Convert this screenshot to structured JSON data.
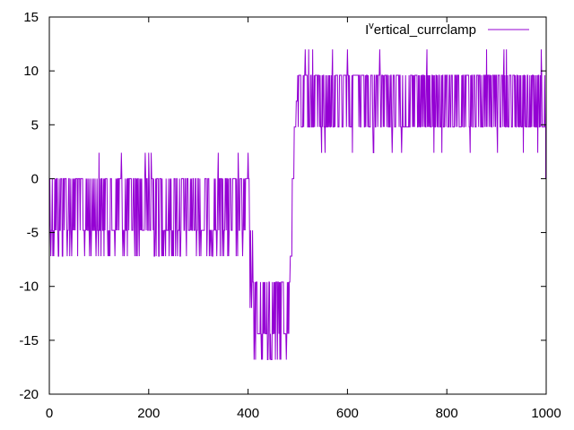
{
  "chart_data": {
    "type": "line",
    "title": "",
    "xlabel": "",
    "ylabel": "",
    "xlim": [
      0,
      1000
    ],
    "ylim": [
      -20,
      15
    ],
    "xticks": [
      0,
      200,
      400,
      600,
      800,
      1000
    ],
    "yticks": [
      -20,
      -15,
      -10,
      -5,
      0,
      5,
      10,
      15
    ],
    "grid": false,
    "legend_position": "top-right",
    "series": [
      {
        "name": "I^vertical_currclamp",
        "legend_label": "I",
        "legend_superscript": "v",
        "legend_rest": "ertical_currclamp",
        "color": "#9400d3",
        "segments": [
          {
            "x_start": 0,
            "x_end": 403,
            "levels": [
              0,
              -4.8,
              -7.2
            ],
            "spikes_up": [
              2.4
            ],
            "spike_x": [
              100,
              145,
              193,
              200,
              205,
              340,
              380,
              400
            ]
          },
          {
            "x_start": 403,
            "x_end": 410,
            "levels": [
              -4.8,
              -9.6,
              -12
            ]
          },
          {
            "x_start": 410,
            "x_end": 485,
            "levels": [
              -9.6,
              -14.4,
              -16.8
            ]
          },
          {
            "x_start": 485,
            "x_end": 500,
            "levels": [
              -7.2,
              0,
              4.8,
              7.2
            ]
          },
          {
            "x_start": 500,
            "x_end": 1000,
            "levels": [
              9.6,
              4.8
            ],
            "spikes_up": [
              12
            ],
            "spikes_down": [
              2.4
            ],
            "spike_x": [
              515,
              522,
              530,
              570,
              600,
              665,
              760,
              880,
              915,
              920,
              990
            ]
          }
        ]
      }
    ]
  }
}
